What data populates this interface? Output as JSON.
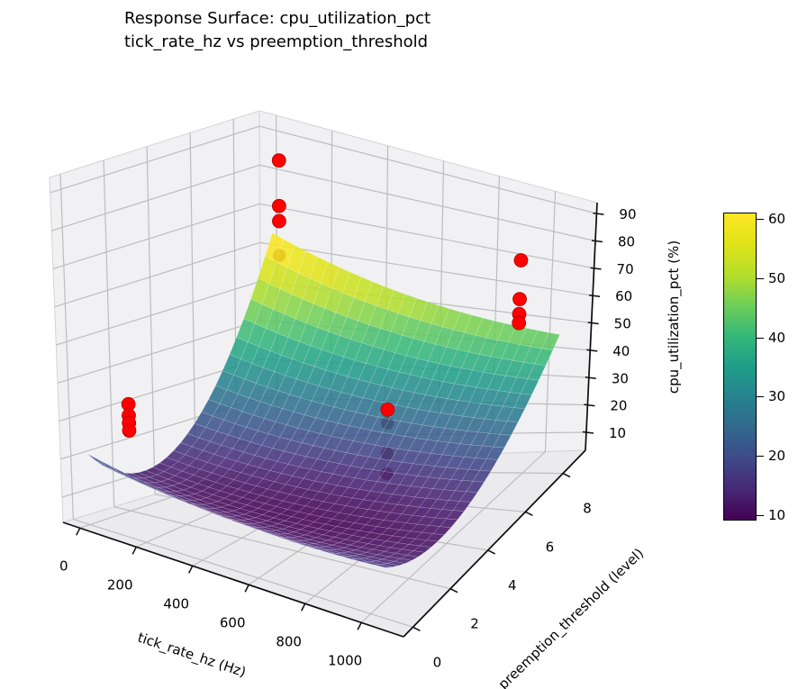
{
  "figure": {
    "title_line1": "Response Surface: cpu_utilization_pct",
    "title_line2": "tick_rate_hz vs preemption_threshold"
  },
  "axes": {
    "x": {
      "label": "tick_rate_hz (Hz)",
      "ticks": [
        0,
        200,
        400,
        600,
        800,
        1000
      ]
    },
    "y": {
      "label": "preemption_threshold (level)",
      "ticks": [
        0,
        2,
        4,
        6,
        8
      ]
    },
    "z": {
      "label": "cpu_utilization_pct (%)",
      "ticks": [
        10,
        20,
        30,
        40,
        50,
        60,
        70,
        80,
        90
      ]
    }
  },
  "colorbar": {
    "cmap": "viridis",
    "ticks": [
      10,
      20,
      30,
      40,
      50,
      60
    ],
    "vmin": 9.05,
    "vmax": 61.1
  },
  "chart_data": {
    "type": "surface",
    "title": "Response Surface: cpu_utilization_pct — tick_rate_hz vs preemption_threshold",
    "xlabel": "tick_rate_hz (Hz)",
    "ylabel": "preemption_threshold (level)",
    "zlabel": "cpu_utilization_pct (%)",
    "surface": {
      "x_range": [
        0,
        1050
      ],
      "y_range": [
        0,
        9
      ],
      "z_display_range": [
        9,
        61
      ],
      "z_model": "z = zmin + p_x*(xn-x0n)^2 + (qy_base + qy_slope*(1-xn))*(yn-y0n)^2 with xn=x/1050, yn=y/9",
      "params": {
        "zmin": 9,
        "p_x": 12,
        "x0n": 0.55,
        "qy_base": 70,
        "qy_slope": 34,
        "y0n": 0.3
      },
      "corner_values": {
        "x0_y9": 63,
        "x1050_y9": 46,
        "x0_y0": 21,
        "x1050_y0": 18,
        "minimum": 9
      }
    },
    "scatter": {
      "color": "#ff0000",
      "marker": "circle",
      "points": [
        {
          "x": 25,
          "y": 9,
          "z": 83,
          "dim": false
        },
        {
          "x": 25,
          "y": 9,
          "z": 71,
          "dim": false
        },
        {
          "x": 25,
          "y": 9,
          "z": 67,
          "dim": false
        },
        {
          "x": 25,
          "y": 9,
          "z": 58,
          "dim": true
        },
        {
          "x": 900,
          "y": 9,
          "z": 69,
          "dim": false
        },
        {
          "x": 900,
          "y": 9,
          "z": 56,
          "dim": false
        },
        {
          "x": 900,
          "y": 9,
          "z": 51,
          "dim": false
        },
        {
          "x": 900,
          "y": 9,
          "z": 48,
          "dim": false
        },
        {
          "x": 150,
          "y": 0,
          "z": 39,
          "dim": false
        },
        {
          "x": 150,
          "y": 0,
          "z": 36,
          "dim": false
        },
        {
          "x": 150,
          "y": 0,
          "z": 34,
          "dim": false
        },
        {
          "x": 150,
          "y": 0,
          "z": 32,
          "dim": false
        },
        {
          "x": 780,
          "y": 4,
          "z": 40,
          "dim": false
        },
        {
          "x": 780,
          "y": 4,
          "z": 36,
          "dim": true
        },
        {
          "x": 780,
          "y": 4,
          "z": 27,
          "dim": true
        },
        {
          "x": 780,
          "y": 4,
          "z": 21,
          "dim": true
        }
      ]
    }
  }
}
